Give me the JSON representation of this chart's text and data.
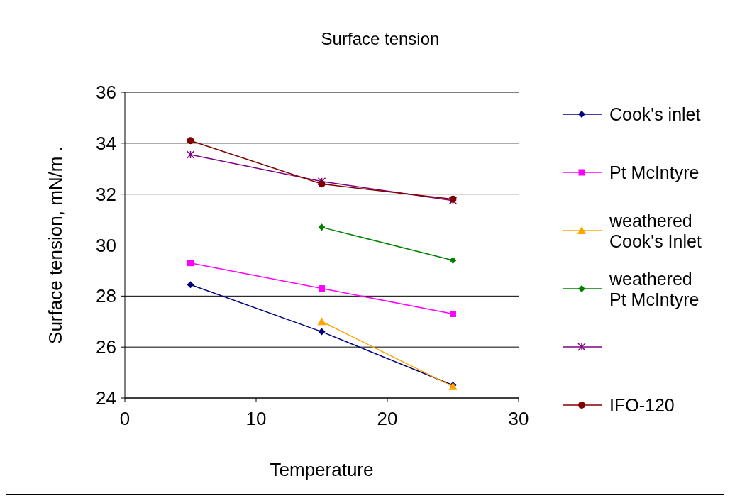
{
  "chart_data": {
    "type": "line",
    "title": "Surface tension",
    "xlabel": "Temperature",
    "ylabel": "Surface tension, mN/m .",
    "x": [
      5,
      15,
      25
    ],
    "series": [
      {
        "name": "Cook's inlet",
        "color": "#000080",
        "marker": "diamond",
        "values": [
          28.45,
          26.6,
          24.5
        ]
      },
      {
        "name": "Pt McIntyre",
        "color": "#ff00ff",
        "marker": "square",
        "values": [
          29.3,
          28.3,
          27.3
        ]
      },
      {
        "name": "weathered Cook's Inlet",
        "color": "#ffa500",
        "marker": "triangle",
        "values": [
          null,
          27.0,
          24.45
        ]
      },
      {
        "name": "weathered Pt McIntyre",
        "color": "#008000",
        "marker": "diamond",
        "values": [
          null,
          30.7,
          29.4
        ]
      },
      {
        "color": "#800080",
        "marker": "cross",
        "values": [
          33.55,
          32.5,
          31.75
        ]
      },
      {
        "name": "IFO-120",
        "color": "#800000",
        "marker": "circle",
        "values": [
          34.1,
          32.4,
          31.8
        ]
      }
    ],
    "xlim": [
      0,
      30
    ],
    "xticks": [
      0,
      10,
      20,
      30
    ],
    "ylim": [
      24,
      36
    ],
    "yticks": [
      24,
      26,
      28,
      30,
      32,
      34,
      36
    ],
    "grid": "y",
    "legend": "right"
  }
}
